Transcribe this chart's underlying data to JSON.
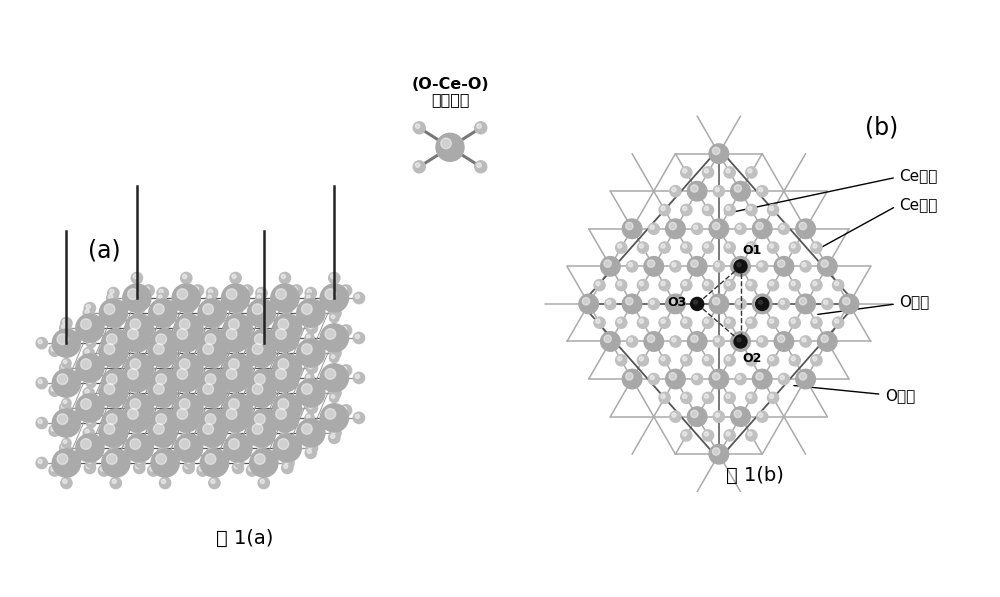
{
  "bg_color": "#ffffff",
  "fig_label_a": "(a)",
  "fig_label_b": "(b)",
  "caption_a": "图 1(a)",
  "caption_b": "图 1(b)",
  "oco_title": "(O-Ce-O)",
  "oco_subtitle": "结构单元",
  "label_ce_replace": "Ce替位",
  "label_ce_top": "Ce顶位",
  "label_o_bridge": "O桥位",
  "label_o_top": "O顶位",
  "label_o1": "O1",
  "label_o2": "O2",
  "label_o3": "O3",
  "ce_color": "#aaaaaa",
  "o_color": "#bbbbbb",
  "bond_color": "#888888",
  "black_color": "#111111",
  "font_size_label": 15,
  "font_size_caption": 14,
  "font_size_annot": 11
}
